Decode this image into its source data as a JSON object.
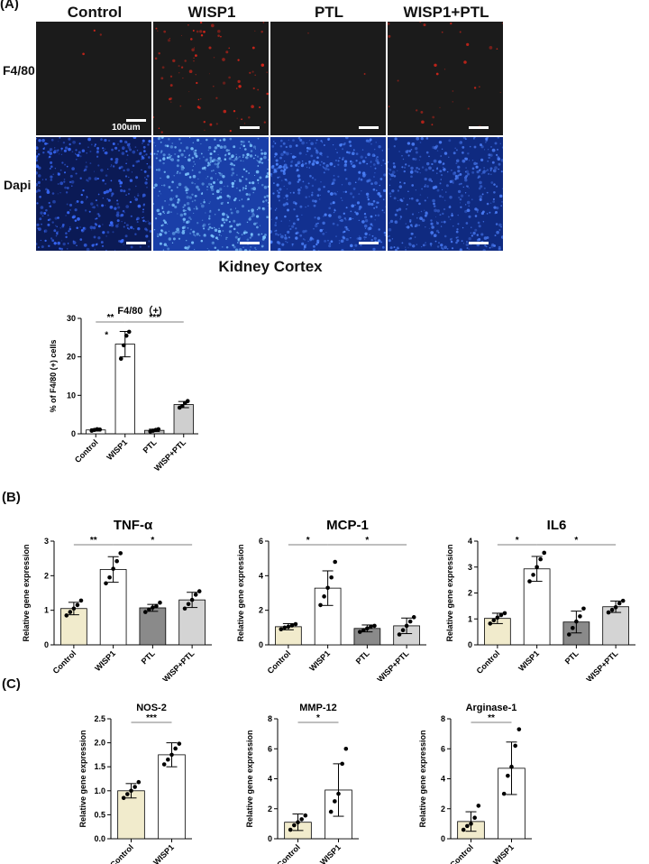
{
  "panels": {
    "a": "(A)",
    "b": "(B)",
    "c": "(C)"
  },
  "micrograph": {
    "columns": [
      "Control",
      "WISP1",
      "PTL",
      "WISP1+PTL"
    ],
    "rows": [
      "F4/80",
      "Dapi"
    ],
    "scale_bar_label": "100um",
    "caption": "Kidney Cortex",
    "colors": {
      "stain_f480": "#e0261a",
      "stain_dapi": "#3a6cff",
      "background": "#1b1b1b"
    }
  },
  "chart_data": [
    {
      "id": "f480",
      "type": "bar",
      "title": "F4/80（+)",
      "ylabel": "% of F4/80 (+) cells",
      "categories": [
        "Control",
        "WISP1",
        "PTL",
        "WISP+PTL"
      ],
      "values": [
        1.0,
        23.3,
        0.9,
        7.6
      ],
      "errors": [
        0.3,
        3.3,
        0.3,
        0.8
      ],
      "points": [
        [
          0.8,
          1.0,
          1.2,
          1.1
        ],
        [
          19.5,
          23.0,
          25.5,
          26.5
        ],
        [
          0.6,
          0.8,
          1.0,
          1.2
        ],
        [
          6.8,
          7.2,
          8.0,
          8.5
        ]
      ],
      "ylim": [
        0,
        30
      ],
      "yticks": [
        0,
        10,
        20,
        30
      ],
      "colors": [
        "#ffffff",
        "#ffffff",
        "#bdbdbd",
        "#cfcfcf"
      ],
      "significance": [
        {
          "from": 0,
          "to": 1,
          "label": "**"
        },
        {
          "from": 1,
          "to": 3,
          "label": "***"
        }
      ],
      "extra_marks": [
        {
          "category": 0,
          "value": 25,
          "label": "*"
        }
      ]
    },
    {
      "id": "tnfa",
      "type": "bar",
      "title": "TNF-α",
      "ylabel": "Relative gene expression",
      "categories": [
        "Control",
        "WISP1",
        "PTL",
        "WISP+PTL"
      ],
      "values": [
        1.05,
        2.18,
        1.07,
        1.3
      ],
      "errors": [
        0.18,
        0.37,
        0.1,
        0.22
      ],
      "points": [
        [
          0.85,
          0.95,
          1.05,
          1.15,
          1.28
        ],
        [
          1.78,
          1.95,
          2.2,
          2.42,
          2.65
        ],
        [
          0.95,
          1.02,
          1.08,
          1.12,
          1.22
        ],
        [
          1.05,
          1.18,
          1.3,
          1.45,
          1.55
        ]
      ],
      "ylim": [
        0,
        3
      ],
      "yticks": [
        0,
        1,
        2,
        3
      ],
      "colors": [
        "#f1ebcc",
        "#ffffff",
        "#8a8a8a",
        "#d4d4d4"
      ],
      "significance": [
        {
          "from": 0,
          "to": 1,
          "label": "**"
        },
        {
          "from": 1,
          "to": 3,
          "label": "*"
        }
      ]
    },
    {
      "id": "mcp1",
      "type": "bar",
      "title": "MCP-1",
      "ylabel": "Relative gene expression",
      "categories": [
        "Control",
        "WISP1",
        "PTL",
        "WISP+PTL"
      ],
      "values": [
        1.05,
        3.28,
        0.95,
        1.1
      ],
      "errors": [
        0.18,
        1.0,
        0.2,
        0.45
      ],
      "points": [
        [
          0.9,
          1.0,
          1.05,
          1.12,
          1.2
        ],
        [
          2.3,
          2.8,
          3.3,
          3.9,
          4.8
        ],
        [
          0.75,
          0.85,
          0.95,
          1.05,
          1.1
        ],
        [
          0.6,
          0.85,
          1.1,
          1.35,
          1.6
        ]
      ],
      "ylim": [
        0,
        6
      ],
      "yticks": [
        0,
        2,
        4,
        6
      ],
      "colors": [
        "#f1ebcc",
        "#ffffff",
        "#8a8a8a",
        "#d4d4d4"
      ],
      "significance": [
        {
          "from": 0,
          "to": 1,
          "label": "*"
        },
        {
          "from": 1,
          "to": 3,
          "label": "*"
        }
      ]
    },
    {
      "id": "il6",
      "type": "bar",
      "title": "IL6",
      "ylabel": "Relative gene expression",
      "categories": [
        "Control",
        "WISP1",
        "PTL",
        "WISP+PTL"
      ],
      "values": [
        1.02,
        2.93,
        0.88,
        1.47
      ],
      "errors": [
        0.2,
        0.48,
        0.42,
        0.22
      ],
      "points": [
        [
          0.82,
          0.95,
          1.05,
          1.15,
          1.22
        ],
        [
          2.45,
          2.7,
          3.0,
          3.3,
          3.55
        ],
        [
          0.4,
          0.65,
          0.9,
          1.1,
          1.4
        ],
        [
          1.25,
          1.35,
          1.45,
          1.6,
          1.7
        ]
      ],
      "ylim": [
        0,
        4
      ],
      "yticks": [
        0,
        1,
        2,
        3,
        4
      ],
      "colors": [
        "#f1ebcc",
        "#ffffff",
        "#8a8a8a",
        "#d4d4d4"
      ],
      "significance": [
        {
          "from": 0,
          "to": 1,
          "label": "*"
        },
        {
          "from": 1,
          "to": 3,
          "label": "*"
        }
      ]
    },
    {
      "id": "nos2",
      "type": "bar",
      "title": "NOS-2",
      "ylabel": "Relative gene expression",
      "categories": [
        "Control",
        "WISP1"
      ],
      "values": [
        1.0,
        1.75
      ],
      "errors": [
        0.15,
        0.25
      ],
      "points": [
        [
          0.85,
          0.93,
          1.0,
          1.08,
          1.18
        ],
        [
          1.55,
          1.65,
          1.75,
          1.88,
          1.98
        ]
      ],
      "ylim": [
        0,
        2.5
      ],
      "yticks": [
        0,
        0.5,
        1.0,
        1.5,
        2.0,
        2.5
      ],
      "ytick_labels": [
        "0.0",
        "0.5",
        "1.0",
        "1.5",
        "2.0",
        "2.5"
      ],
      "colors": [
        "#f1ebcc",
        "#ffffff"
      ],
      "significance": [
        {
          "from": 0,
          "to": 1,
          "label": "***"
        }
      ]
    },
    {
      "id": "mmp12",
      "type": "bar",
      "title": "MMP-12",
      "ylabel": "Relative gene expression",
      "categories": [
        "Control",
        "WISP1"
      ],
      "values": [
        1.1,
        3.25
      ],
      "errors": [
        0.55,
        1.75
      ],
      "points": [
        [
          0.6,
          0.9,
          1.1,
          1.3,
          1.55
        ],
        [
          1.8,
          2.5,
          3.0,
          5.0,
          6.0
        ]
      ],
      "ylim": [
        0,
        8
      ],
      "yticks": [
        0,
        2,
        4,
        6,
        8
      ],
      "colors": [
        "#f1ebcc",
        "#ffffff"
      ],
      "significance": [
        {
          "from": 0,
          "to": 1,
          "label": "*"
        }
      ]
    },
    {
      "id": "arg1",
      "type": "bar",
      "title": "Arginase-1",
      "ylabel": "Relative gene expression",
      "categories": [
        "Control",
        "WISP1"
      ],
      "values": [
        1.15,
        4.7
      ],
      "errors": [
        0.65,
        1.75
      ],
      "points": [
        [
          0.6,
          0.85,
          1.0,
          1.4,
          2.2
        ],
        [
          3.0,
          4.2,
          4.8,
          6.2,
          7.3
        ]
      ],
      "ylim": [
        0,
        8
      ],
      "yticks": [
        0,
        2,
        4,
        6,
        8
      ],
      "colors": [
        "#f1ebcc",
        "#ffffff"
      ],
      "significance": [
        {
          "from": 0,
          "to": 1,
          "label": "**"
        }
      ]
    }
  ]
}
